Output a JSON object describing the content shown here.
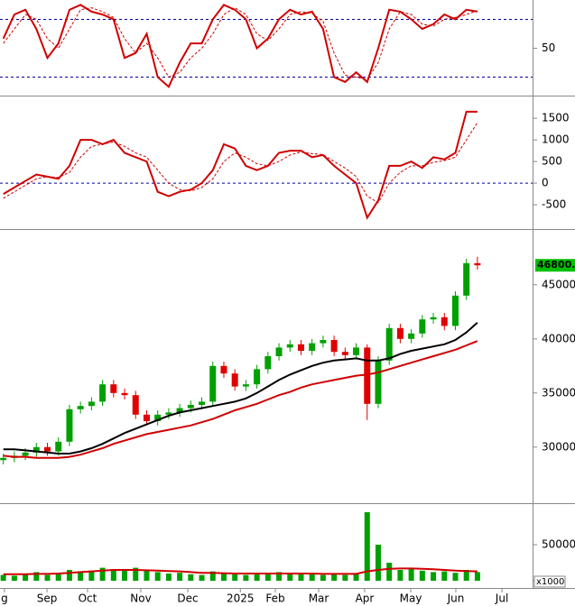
{
  "chart_data": [
    {
      "type": "line",
      "xlim": [
        -0.3,
        48
      ],
      "ylim": [
        2.7,
        98.2
      ],
      "yticks": [
        50
      ],
      "levels": [
        80,
        20
      ],
      "level_color": "#0000a0",
      "x": [
        0,
        1,
        2,
        3,
        4,
        5,
        6,
        7,
        8,
        9,
        10,
        11,
        12,
        13,
        14,
        15,
        16,
        17,
        18,
        19,
        20,
        21,
        22,
        23,
        24,
        25,
        26,
        27,
        28,
        29,
        30,
        31,
        32,
        33,
        34,
        35,
        36,
        37,
        38,
        39,
        40,
        41,
        42,
        43
      ],
      "series": [
        {
          "color": "#d00000",
          "values": [
            60,
            85,
            90,
            70,
            40,
            55,
            90,
            95,
            88,
            85,
            80,
            40,
            45,
            65,
            20,
            10,
            35,
            55,
            55,
            80,
            95,
            90,
            80,
            50,
            60,
            80,
            90,
            85,
            88,
            70,
            20,
            15,
            25,
            15,
            50,
            90,
            88,
            80,
            70,
            75,
            85,
            80,
            90,
            88
          ]
        },
        {
          "color": "#d00000",
          "dashed": true,
          "values": [
            55,
            70,
            85,
            80,
            60,
            50,
            70,
            90,
            92,
            88,
            82,
            60,
            45,
            55,
            40,
            20,
            25,
            40,
            50,
            65,
            85,
            92,
            85,
            65,
            58,
            70,
            85,
            88,
            86,
            78,
            45,
            22,
            20,
            18,
            35,
            70,
            88,
            85,
            75,
            73,
            80,
            82,
            85,
            89
          ]
        }
      ]
    },
    {
      "type": "line",
      "xlim": [
        -0.3,
        48
      ],
      "ylim": [
        -1020,
        1940
      ],
      "yticks": [
        1500,
        1000,
        500,
        0,
        -500
      ],
      "levels": [
        0
      ],
      "level_color": "#0000a0",
      "x": [
        0,
        1,
        2,
        3,
        4,
        5,
        6,
        7,
        8,
        9,
        10,
        11,
        12,
        13,
        14,
        15,
        16,
        17,
        18,
        19,
        20,
        21,
        22,
        23,
        24,
        25,
        26,
        27,
        28,
        29,
        30,
        31,
        32,
        33,
        34,
        35,
        36,
        37,
        38,
        39,
        40,
        41,
        42,
        43
      ],
      "series": [
        {
          "color": "#d00000",
          "values": [
            -250,
            -100,
            50,
            200,
            150,
            100,
            400,
            1000,
            1000,
            900,
            1000,
            700,
            600,
            500,
            -200,
            -300,
            -200,
            -150,
            0,
            300,
            900,
            800,
            400,
            300,
            400,
            700,
            750,
            750,
            600,
            650,
            400,
            200,
            0,
            -800,
            -400,
            400,
            400,
            500,
            350,
            600,
            550,
            700,
            1650,
            1650
          ]
        },
        {
          "color": "#d00000",
          "dashed": true,
          "values": [
            -350,
            -200,
            -50,
            100,
            150,
            130,
            250,
            600,
            850,
            900,
            950,
            850,
            700,
            600,
            300,
            0,
            -150,
            -180,
            -100,
            100,
            500,
            700,
            600,
            450,
            400,
            500,
            650,
            720,
            680,
            660,
            500,
            350,
            150,
            -300,
            -450,
            0,
            250,
            400,
            400,
            480,
            520,
            600,
            1000,
            1400
          ]
        }
      ]
    },
    {
      "type": "candlestick",
      "xlim": [
        -0.3,
        48
      ],
      "ylim": [
        24900,
        49900
      ],
      "yticks": [
        45000,
        40000,
        35000,
        30000
      ],
      "up_color": "#00a000",
      "down_color": "#e00000",
      "x": [
        0,
        1,
        2,
        3,
        4,
        5,
        6,
        7,
        8,
        9,
        10,
        11,
        12,
        13,
        14,
        15,
        16,
        17,
        18,
        19,
        20,
        21,
        22,
        23,
        24,
        25,
        26,
        27,
        28,
        29,
        30,
        31,
        32,
        33,
        34,
        35,
        36,
        37,
        38,
        39,
        40,
        41,
        42,
        43
      ],
      "open": [
        28800,
        29000,
        29200,
        29500,
        30000,
        29600,
        30500,
        33500,
        33800,
        34200,
        35800,
        35000,
        34800,
        33000,
        32400,
        33000,
        33200,
        33600,
        33900,
        34200,
        37500,
        36800,
        35600,
        35800,
        37200,
        38400,
        39200,
        39500,
        38900,
        39600,
        39900,
        38800,
        38500,
        39200,
        34000,
        38000,
        41000,
        40000,
        40500,
        41800,
        42000,
        41200,
        44000,
        47000
      ],
      "high": [
        29400,
        29600,
        29900,
        30400,
        30400,
        30900,
        33900,
        34200,
        34600,
        36200,
        36200,
        35400,
        35200,
        33400,
        33400,
        33600,
        34000,
        34300,
        34600,
        37900,
        37900,
        37200,
        36200,
        37600,
        38800,
        39600,
        39900,
        39900,
        40000,
        40300,
        40300,
        39200,
        39600,
        39500,
        38400,
        41400,
        41400,
        40900,
        42200,
        42400,
        42400,
        44400,
        47400,
        47600
      ],
      "low": [
        28400,
        28600,
        28800,
        29100,
        29200,
        29200,
        30100,
        33100,
        33400,
        33800,
        34600,
        34400,
        32600,
        32000,
        32000,
        32600,
        32800,
        33200,
        33500,
        33800,
        36400,
        35200,
        35200,
        35400,
        36800,
        38000,
        38800,
        38500,
        38500,
        39200,
        38400,
        38100,
        38100,
        32500,
        33600,
        37600,
        39600,
        39600,
        40100,
        41400,
        40800,
        40800,
        43600,
        46400
      ],
      "close": [
        29000,
        29200,
        29500,
        30000,
        29600,
        30500,
        33500,
        33800,
        34200,
        35800,
        35000,
        34800,
        33000,
        32400,
        33000,
        33200,
        33600,
        33900,
        34200,
        37500,
        36800,
        35600,
        35800,
        37200,
        38400,
        39200,
        39500,
        38900,
        39600,
        39900,
        38800,
        38500,
        39200,
        34000,
        38000,
        41000,
        40000,
        40500,
        41800,
        42000,
        41200,
        44000,
        47000,
        46800
      ],
      "series": [
        {
          "color": "#000000",
          "values": [
            29800,
            29800,
            29700,
            29600,
            29500,
            29400,
            29400,
            29600,
            29900,
            30300,
            30800,
            31300,
            31700,
            32100,
            32500,
            32900,
            33200,
            33400,
            33600,
            33800,
            34000,
            34200,
            34500,
            35000,
            35600,
            36200,
            36700,
            37100,
            37500,
            37800,
            38000,
            38100,
            38200,
            38000,
            38000,
            38200,
            38600,
            38900,
            39100,
            39300,
            39500,
            39900,
            40600,
            41500
          ]
        },
        {
          "color": "#d00000",
          "values": [
            29200,
            29100,
            29100,
            29000,
            29000,
            29000,
            29100,
            29300,
            29600,
            29900,
            30300,
            30600,
            30900,
            31200,
            31400,
            31600,
            31800,
            32000,
            32300,
            32600,
            33000,
            33400,
            33700,
            34000,
            34400,
            34800,
            35100,
            35500,
            35800,
            36000,
            36200,
            36400,
            36600,
            36700,
            36900,
            37200,
            37500,
            37800,
            38100,
            38400,
            38700,
            39000,
            39400,
            39800
          ]
        }
      ],
      "last_label": {
        "value": 46800,
        "label": "46800.00"
      }
    },
    {
      "type": "bar",
      "xlim": [
        -0.3,
        48
      ],
      "ylim": [
        -7500,
        103750
      ],
      "yticks": [
        50000,
        0
      ],
      "color": "#00a000",
      "unit": "x1000",
      "x": [
        0,
        1,
        2,
        3,
        4,
        5,
        6,
        7,
        8,
        9,
        10,
        11,
        12,
        13,
        14,
        15,
        16,
        17,
        18,
        19,
        20,
        21,
        22,
        23,
        24,
        25,
        26,
        27,
        28,
        29,
        30,
        31,
        32,
        33,
        34,
        35,
        36,
        37,
        38,
        39,
        40,
        41,
        42,
        43
      ],
      "values": [
        8000,
        7000,
        9000,
        12000,
        8000,
        10000,
        15000,
        12000,
        14000,
        18000,
        16000,
        14000,
        18000,
        15000,
        12000,
        10000,
        11000,
        9000,
        8000,
        13000,
        10000,
        9000,
        8000,
        10000,
        9000,
        12000,
        11000,
        9000,
        10000,
        8000,
        9000,
        8000,
        10000,
        95000,
        50000,
        25000,
        15000,
        18000,
        14000,
        12000,
        13000,
        11000,
        15000,
        12000
      ],
      "series": [
        {
          "color": "#d00000",
          "values": [
            9000,
            9000,
            9000,
            9500,
            9500,
            10000,
            11000,
            12000,
            13000,
            14000,
            15000,
            15000,
            15000,
            14500,
            14000,
            13500,
            13000,
            12000,
            11000,
            11000,
            10500,
            10000,
            10000,
            10000,
            10000,
            10000,
            10000,
            10000,
            10000,
            9500,
            9500,
            9500,
            9500,
            13000,
            15000,
            16500,
            17000,
            17000,
            16500,
            16000,
            15000,
            14000,
            13500,
            13000
          ]
        }
      ],
      "xticks": [
        {
          "value": 0.1,
          "label": "g"
        },
        {
          "value": 3.96,
          "label": "Sep"
        },
        {
          "value": 7.64,
          "label": "Oct"
        },
        {
          "value": 12.47,
          "label": "Nov"
        },
        {
          "value": 16.73,
          "label": "Dec"
        },
        {
          "value": 21.5,
          "label": "2025"
        },
        {
          "value": 24.67,
          "label": "Feb"
        },
        {
          "value": 28.6,
          "label": "Mar"
        },
        {
          "value": 32.77,
          "label": "Apr"
        },
        {
          "value": 36.95,
          "label": "May"
        },
        {
          "value": 41.04,
          "label": "Jun"
        },
        {
          "value": 45.22,
          "label": "Jul"
        }
      ]
    }
  ]
}
